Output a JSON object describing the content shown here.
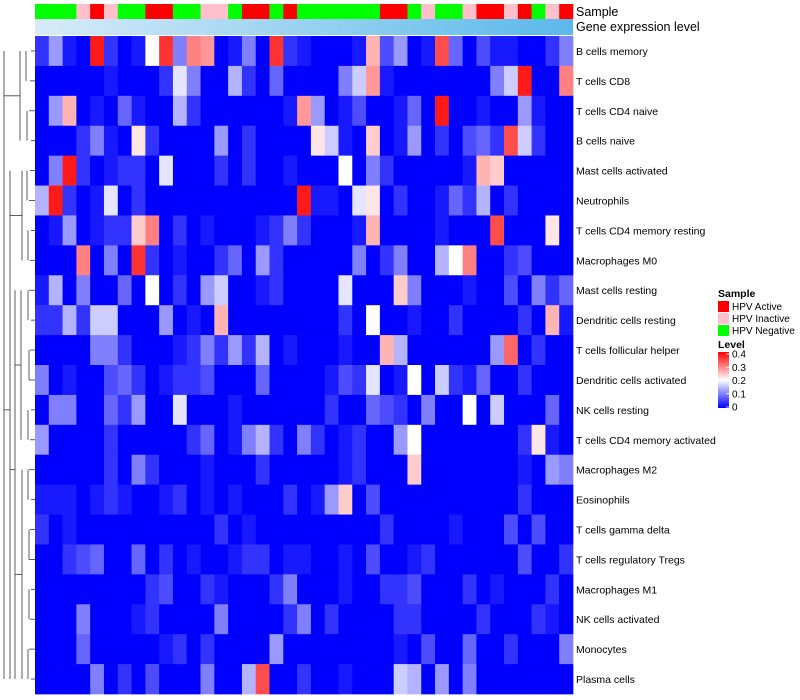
{
  "chart_data": {
    "type": "heatmap",
    "annotation_labels": {
      "sample": "Sample",
      "gene": "Gene expression level"
    },
    "legend": {
      "sample_title": "Sample",
      "sample_entries": [
        {
          "name": "HPV Active",
          "color": "#ff0000"
        },
        {
          "name": "HPV Inactive",
          "color": "#ffc0cb"
        },
        {
          "name": "HPV Negative",
          "color": "#00ff00"
        }
      ],
      "level_title": "Level",
      "level_ticks": [
        "0.4",
        "0.3",
        "0.2",
        "0.1",
        "0"
      ],
      "level_range": [
        0,
        0.4
      ]
    },
    "color_scale": {
      "low": "#0000ff",
      "mid": "#ffffff",
      "high": "#ff0000",
      "mid_value": 0.2
    },
    "sample_annotation": [
      "neg",
      "neg",
      "neg",
      "ina",
      "act",
      "ina",
      "neg",
      "neg",
      "act",
      "act",
      "neg",
      "neg",
      "ina",
      "ina",
      "neg",
      "act",
      "act",
      "neg",
      "act",
      "neg",
      "neg",
      "neg",
      "neg",
      "neg",
      "neg",
      "act",
      "act",
      "neg",
      "ina",
      "neg",
      "neg",
      "ina",
      "act",
      "act",
      "ina",
      "act",
      "neg",
      "ina",
      "act"
    ],
    "gene_expression_gradient": [
      "#d8ecf8",
      "#5ab8ea"
    ],
    "rows": [
      "B cells memory",
      "T cells CD8",
      "T cells CD4 naive",
      "B cells naive",
      "Mast cells activated",
      "Neutrophils",
      "T cells CD4 memory resting",
      "Macrophages M0",
      "Mast cells resting",
      "Dendritic cells resting",
      "T cells follicular helper",
      "Dendritic cells activated",
      "NK cells resting",
      "T cells CD4 memory activated",
      "Macrophages M2",
      "Eosinophils",
      "T cells gamma delta",
      "T cells regulatory  Tregs",
      "Macrophages M1",
      "NK cells activated",
      "Monocytes",
      "Plasma cells"
    ],
    "values": [
      [
        0.04,
        0.12,
        0.02,
        0.0,
        0.38,
        0.04,
        0.0,
        0.02,
        0.2,
        0.36,
        0.1,
        0.3,
        0.28,
        0.0,
        0.02,
        0.1,
        0.0,
        0.36,
        0.04,
        0.02,
        0.0,
        0.0,
        0.0,
        0.02,
        0.26,
        0.06,
        0.12,
        0.0,
        0.02,
        0.34,
        0.08,
        0.0,
        0.06,
        0.02,
        0.02,
        0.0,
        0.0,
        0.04,
        0.1
      ],
      [
        0.0,
        0.0,
        0.0,
        0.0,
        0.0,
        0.02,
        0.0,
        0.0,
        0.0,
        0.04,
        0.18,
        0.1,
        0.0,
        0.0,
        0.14,
        0.04,
        0.0,
        0.08,
        0.0,
        0.0,
        0.0,
        0.0,
        0.1,
        0.16,
        0.28,
        0.02,
        0.0,
        0.0,
        0.0,
        0.0,
        0.0,
        0.0,
        0.0,
        0.1,
        0.16,
        0.38,
        0.0,
        0.0,
        0.3
      ],
      [
        0.0,
        0.12,
        0.26,
        0.0,
        0.02,
        0.0,
        0.08,
        0.02,
        0.0,
        0.0,
        0.14,
        0.04,
        0.0,
        0.0,
        0.0,
        0.0,
        0.0,
        0.0,
        0.02,
        0.28,
        0.12,
        0.0,
        0.02,
        0.06,
        0.0,
        0.0,
        0.02,
        0.08,
        0.0,
        0.38,
        0.0,
        0.0,
        0.02,
        0.0,
        0.0,
        0.12,
        0.02,
        0.0,
        0.0
      ],
      [
        0.0,
        0.0,
        0.0,
        0.04,
        0.1,
        0.02,
        0.0,
        0.22,
        0.04,
        0.0,
        0.0,
        0.0,
        0.0,
        0.12,
        0.0,
        0.04,
        0.0,
        0.0,
        0.0,
        0.0,
        0.22,
        0.16,
        0.02,
        0.0,
        0.24,
        0.0,
        0.02,
        0.12,
        0.0,
        0.04,
        0.0,
        0.06,
        0.08,
        0.04,
        0.34,
        0.16,
        0.04,
        0.0,
        0.0
      ],
      [
        0.0,
        0.1,
        0.38,
        0.04,
        0.0,
        0.02,
        0.04,
        0.04,
        0.0,
        0.18,
        0.0,
        0.0,
        0.0,
        0.04,
        0.0,
        0.04,
        0.0,
        0.0,
        0.02,
        0.0,
        0.0,
        0.0,
        0.2,
        0.0,
        0.1,
        0.04,
        0.0,
        0.0,
        0.0,
        0.0,
        0.0,
        0.02,
        0.26,
        0.24,
        0.0,
        0.0,
        0.0,
        0.0,
        0.0
      ],
      [
        0.14,
        0.38,
        0.04,
        0.0,
        0.02,
        0.18,
        0.0,
        0.04,
        0.0,
        0.0,
        0.0,
        0.0,
        0.0,
        0.0,
        0.0,
        0.0,
        0.0,
        0.0,
        0.0,
        0.38,
        0.02,
        0.02,
        0.0,
        0.18,
        0.22,
        0.0,
        0.04,
        0.0,
        0.0,
        0.02,
        0.08,
        0.04,
        0.14,
        0.0,
        0.04,
        0.0,
        0.0,
        0.0,
        0.0
      ],
      [
        0.0,
        0.02,
        0.12,
        0.0,
        0.02,
        0.04,
        0.04,
        0.24,
        0.3,
        0.0,
        0.04,
        0.0,
        0.02,
        0.0,
        0.0,
        0.0,
        0.02,
        0.04,
        0.1,
        0.04,
        0.0,
        0.0,
        0.0,
        0.02,
        0.26,
        0.0,
        0.0,
        0.0,
        0.0,
        0.02,
        0.0,
        0.0,
        0.0,
        0.34,
        0.0,
        0.0,
        0.0,
        0.22,
        0.0
      ],
      [
        0.0,
        0.0,
        0.0,
        0.3,
        0.0,
        0.1,
        0.0,
        0.36,
        0.04,
        0.0,
        0.02,
        0.0,
        0.0,
        0.04,
        0.08,
        0.0,
        0.12,
        0.04,
        0.0,
        0.0,
        0.0,
        0.0,
        0.0,
        0.1,
        0.0,
        0.04,
        0.1,
        0.0,
        0.0,
        0.14,
        0.2,
        0.3,
        0.0,
        0.0,
        0.04,
        0.06,
        0.0,
        0.0,
        0.0
      ],
      [
        0.02,
        0.14,
        0.0,
        0.1,
        0.0,
        0.0,
        0.08,
        0.0,
        0.2,
        0.0,
        0.04,
        0.0,
        0.12,
        0.16,
        0.0,
        0.0,
        0.02,
        0.04,
        0.0,
        0.0,
        0.0,
        0.0,
        0.18,
        0.0,
        0.0,
        0.0,
        0.24,
        0.1,
        0.0,
        0.0,
        0.0,
        0.02,
        0.0,
        0.0,
        0.06,
        0.0,
        0.1,
        0.04,
        0.08
      ],
      [
        0.04,
        0.04,
        0.14,
        0.04,
        0.16,
        0.16,
        0.0,
        0.0,
        0.0,
        0.12,
        0.0,
        0.02,
        0.0,
        0.26,
        0.0,
        0.0,
        0.0,
        0.0,
        0.0,
        0.0,
        0.0,
        0.0,
        0.04,
        0.0,
        0.2,
        0.0,
        0.0,
        0.02,
        0.0,
        0.0,
        0.04,
        0.0,
        0.0,
        0.0,
        0.0,
        0.04,
        0.0,
        0.26,
        0.02
      ],
      [
        0.0,
        0.0,
        0.0,
        0.0,
        0.1,
        0.1,
        0.04,
        0.0,
        0.0,
        0.0,
        0.02,
        0.04,
        0.1,
        0.04,
        0.12,
        0.04,
        0.14,
        0.0,
        0.02,
        0.0,
        0.0,
        0.0,
        0.02,
        0.0,
        0.0,
        0.26,
        0.14,
        0.0,
        0.0,
        0.0,
        0.0,
        0.0,
        0.0,
        0.12,
        0.32,
        0.0,
        0.04,
        0.0,
        0.0
      ],
      [
        0.1,
        0.0,
        0.02,
        0.0,
        0.0,
        0.06,
        0.08,
        0.04,
        0.0,
        0.02,
        0.04,
        0.04,
        0.06,
        0.0,
        0.0,
        0.0,
        0.08,
        0.0,
        0.0,
        0.0,
        0.0,
        0.02,
        0.06,
        0.04,
        0.18,
        0.0,
        0.02,
        0.2,
        0.0,
        0.16,
        0.04,
        0.02,
        0.08,
        0.0,
        0.0,
        0.04,
        0.0,
        0.0,
        0.0
      ],
      [
        0.0,
        0.1,
        0.1,
        0.0,
        0.0,
        0.08,
        0.04,
        0.12,
        0.0,
        0.0,
        0.18,
        0.0,
        0.0,
        0.0,
        0.02,
        0.0,
        0.0,
        0.0,
        0.0,
        0.0,
        0.0,
        0.04,
        0.0,
        0.0,
        0.08,
        0.06,
        0.04,
        0.0,
        0.1,
        0.0,
        0.0,
        0.2,
        0.0,
        0.16,
        0.0,
        0.0,
        0.0,
        0.08,
        0.0
      ],
      [
        0.12,
        0.0,
        0.0,
        0.0,
        0.0,
        0.04,
        0.0,
        0.0,
        0.0,
        0.0,
        0.0,
        0.04,
        0.08,
        0.0,
        0.02,
        0.1,
        0.14,
        0.04,
        0.0,
        0.1,
        0.04,
        0.0,
        0.02,
        0.04,
        0.0,
        0.0,
        0.12,
        0.2,
        0.0,
        0.0,
        0.0,
        0.0,
        0.0,
        0.0,
        0.0,
        0.04,
        0.22,
        0.02,
        0.0
      ],
      [
        0.0,
        0.0,
        0.0,
        0.0,
        0.0,
        0.04,
        0.0,
        0.1,
        0.04,
        0.0,
        0.0,
        0.0,
        0.02,
        0.0,
        0.0,
        0.0,
        0.04,
        0.0,
        0.0,
        0.0,
        0.0,
        0.0,
        0.02,
        0.04,
        0.0,
        0.0,
        0.0,
        0.24,
        0.0,
        0.0,
        0.0,
        0.0,
        0.0,
        0.0,
        0.0,
        0.02,
        0.0,
        0.12,
        0.1
      ],
      [
        0.02,
        0.02,
        0.02,
        0.0,
        0.02,
        0.04,
        0.02,
        0.0,
        0.0,
        0.02,
        0.04,
        0.0,
        0.02,
        0.0,
        0.02,
        0.0,
        0.0,
        0.0,
        0.04,
        0.0,
        0.02,
        0.12,
        0.24,
        0.0,
        0.06,
        0.0,
        0.0,
        0.0,
        0.0,
        0.0,
        0.0,
        0.0,
        0.0,
        0.0,
        0.0,
        0.04,
        0.0,
        0.0,
        0.0
      ],
      [
        0.04,
        0.0,
        0.02,
        0.0,
        0.0,
        0.0,
        0.0,
        0.0,
        0.0,
        0.0,
        0.0,
        0.0,
        0.0,
        0.04,
        0.0,
        0.02,
        0.0,
        0.0,
        0.0,
        0.0,
        0.0,
        0.0,
        0.0,
        0.0,
        0.0,
        0.04,
        0.0,
        0.0,
        0.0,
        0.0,
        0.02,
        0.0,
        0.0,
        0.0,
        0.06,
        0.0,
        0.06,
        0.0,
        0.0
      ],
      [
        0.0,
        0.0,
        0.04,
        0.06,
        0.08,
        0.0,
        0.0,
        0.08,
        0.0,
        0.04,
        0.0,
        0.02,
        0.0,
        0.0,
        0.02,
        0.04,
        0.04,
        0.0,
        0.02,
        0.02,
        0.0,
        0.0,
        0.02,
        0.0,
        0.06,
        0.0,
        0.0,
        0.02,
        0.04,
        0.0,
        0.0,
        0.0,
        0.0,
        0.0,
        0.0,
        0.06,
        0.0,
        0.0,
        0.04
      ],
      [
        0.0,
        0.0,
        0.0,
        0.0,
        0.0,
        0.0,
        0.0,
        0.0,
        0.04,
        0.06,
        0.0,
        0.0,
        0.04,
        0.02,
        0.0,
        0.0,
        0.0,
        0.04,
        0.1,
        0.0,
        0.0,
        0.0,
        0.02,
        0.0,
        0.0,
        0.04,
        0.04,
        0.06,
        0.0,
        0.0,
        0.0,
        0.04,
        0.0,
        0.02,
        0.0,
        0.0,
        0.0,
        0.04,
        0.0
      ],
      [
        0.0,
        0.0,
        0.0,
        0.1,
        0.0,
        0.0,
        0.0,
        0.02,
        0.04,
        0.0,
        0.0,
        0.0,
        0.0,
        0.1,
        0.0,
        0.0,
        0.0,
        0.0,
        0.04,
        0.1,
        0.0,
        0.04,
        0.0,
        0.0,
        0.0,
        0.0,
        0.04,
        0.04,
        0.0,
        0.0,
        0.0,
        0.0,
        0.04,
        0.0,
        0.0,
        0.0,
        0.04,
        0.02,
        0.0
      ],
      [
        0.0,
        0.0,
        0.0,
        0.08,
        0.0,
        0.0,
        0.0,
        0.0,
        0.0,
        0.02,
        0.04,
        0.0,
        0.04,
        0.0,
        0.0,
        0.0,
        0.0,
        0.12,
        0.0,
        0.0,
        0.0,
        0.0,
        0.0,
        0.0,
        0.0,
        0.0,
        0.02,
        0.0,
        0.06,
        0.0,
        0.0,
        0.08,
        0.0,
        0.0,
        0.04,
        0.0,
        0.0,
        0.0,
        0.1
      ],
      [
        0.0,
        0.0,
        0.0,
        0.0,
        0.1,
        0.0,
        0.04,
        0.0,
        0.06,
        0.0,
        0.0,
        0.0,
        0.1,
        0.0,
        0.0,
        0.14,
        0.34,
        0.0,
        0.0,
        0.04,
        0.0,
        0.0,
        0.02,
        0.0,
        0.0,
        0.0,
        0.16,
        0.14,
        0.0,
        0.12,
        0.0,
        0.1,
        0.0,
        0.0,
        0.0,
        0.0,
        0.0,
        0.0,
        0.0
      ]
    ]
  }
}
